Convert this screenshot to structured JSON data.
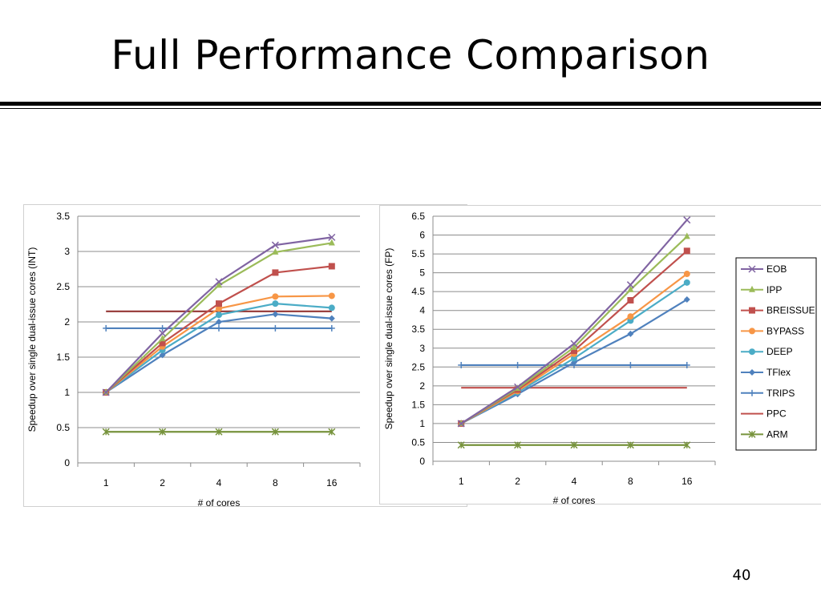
{
  "slide": {
    "title": "Full Performance Comparison",
    "page_number": "40"
  },
  "chart_data": [
    {
      "type": "line",
      "title": "",
      "xlabel": "# of cores",
      "ylabel": "Speedup over single dual-issue cores (INT)",
      "categories": [
        "1",
        "2",
        "4",
        "8",
        "16"
      ],
      "ylim": [
        0,
        3.5
      ],
      "yticks": [
        "0",
        "0.5",
        "1",
        "1.5",
        "2",
        "2.5",
        "3",
        "3.5"
      ],
      "grid": true,
      "series": [
        {
          "name": "EOB",
          "color": "#8064a2",
          "marker": "x",
          "values": [
            1.0,
            1.84,
            2.57,
            3.09,
            3.2
          ]
        },
        {
          "name": "IPP",
          "color": "#9bbb59",
          "marker": "triangle",
          "values": [
            1.0,
            1.76,
            2.52,
            2.99,
            3.12
          ]
        },
        {
          "name": "BREISSUE",
          "color": "#c0504d",
          "marker": "square",
          "values": [
            1.0,
            1.7,
            2.26,
            2.7,
            2.79
          ]
        },
        {
          "name": "BYPASS",
          "color": "#f79646",
          "marker": "circle",
          "values": [
            1.0,
            1.65,
            2.19,
            2.36,
            2.37
          ]
        },
        {
          "name": "DEEP",
          "color": "#4bacc6",
          "marker": "circle",
          "values": [
            1.0,
            1.6,
            2.1,
            2.26,
            2.2
          ]
        },
        {
          "name": "TFlex",
          "color": "#4f81bd",
          "marker": "diamond",
          "values": [
            1.0,
            1.53,
            2.0,
            2.11,
            2.05
          ]
        },
        {
          "name": "TRIPS",
          "color": "#4f81bd",
          "marker": "plus",
          "values": [
            1.91,
            1.91,
            1.91,
            1.91,
            1.91
          ]
        },
        {
          "name": "PPC",
          "color": "#943634",
          "marker": "none",
          "values": [
            2.15,
            2.15,
            2.15,
            2.15,
            2.15
          ]
        },
        {
          "name": "ARM",
          "color": "#77933c",
          "marker": "star",
          "values": [
            0.44,
            0.44,
            0.44,
            0.44,
            0.44
          ]
        }
      ]
    },
    {
      "type": "line",
      "title": "",
      "xlabel": "# of cores",
      "ylabel": "Speedup over single dual-issue cores (FP)",
      "categories": [
        "1",
        "2",
        "4",
        "8",
        "16"
      ],
      "ylim": [
        0,
        6.5
      ],
      "yticks": [
        "0",
        "0.5",
        "1",
        "1.5",
        "2",
        "2.5",
        "3",
        "3.5",
        "4",
        "4.5",
        "5",
        "5.5",
        "6",
        "6.5"
      ],
      "grid": true,
      "legend": "right",
      "series": [
        {
          "name": "EOB",
          "color": "#8064a2",
          "marker": "x",
          "values": [
            1.0,
            1.97,
            3.12,
            4.68,
            6.4
          ]
        },
        {
          "name": "IPP",
          "color": "#9bbb59",
          "marker": "triangle",
          "values": [
            1.0,
            1.93,
            3.02,
            4.55,
            5.96
          ]
        },
        {
          "name": "BREISSUE",
          "color": "#c0504d",
          "marker": "square",
          "values": [
            1.0,
            1.9,
            2.93,
            4.27,
            5.58
          ]
        },
        {
          "name": "BYPASS",
          "color": "#f79646",
          "marker": "circle",
          "values": [
            1.0,
            1.86,
            2.85,
            3.84,
            4.97
          ]
        },
        {
          "name": "DEEP",
          "color": "#4bacc6",
          "marker": "circle",
          "values": [
            1.0,
            1.83,
            2.73,
            3.73,
            4.74
          ]
        },
        {
          "name": "TFlex",
          "color": "#4f81bd",
          "marker": "diamond",
          "values": [
            1.0,
            1.78,
            2.62,
            3.38,
            4.29
          ]
        },
        {
          "name": "TRIPS",
          "color": "#4f81bd",
          "marker": "plus",
          "values": [
            2.55,
            2.55,
            2.55,
            2.55,
            2.55
          ]
        },
        {
          "name": "PPC",
          "color": "#c0504d",
          "marker": "none",
          "values": [
            1.95,
            1.95,
            1.95,
            1.95,
            1.95
          ]
        },
        {
          "name": "ARM",
          "color": "#77933c",
          "marker": "star",
          "values": [
            0.43,
            0.43,
            0.43,
            0.43,
            0.43
          ]
        }
      ]
    }
  ]
}
